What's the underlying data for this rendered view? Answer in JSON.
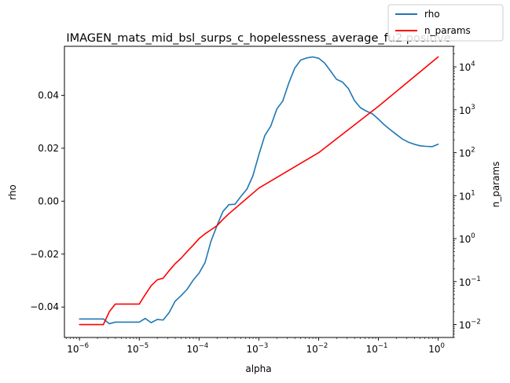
{
  "chart_data": {
    "type": "line",
    "title": "IMAGEN_mats_mid_bsl_surps_c_hopelessness_average_fu2 positive",
    "xlabel": "alpha",
    "ylabel_left": "rho",
    "ylabel_right": "n_params",
    "x_scale": "log",
    "y_right_scale": "log",
    "xlim": [
      5.6e-07,
      1.8
    ],
    "ylim_left": [
      -0.0515,
      0.0585
    ],
    "ylim_right": [
      0.005,
      30000
    ],
    "x_ticks": [
      {
        "base": "10",
        "exp": "−6",
        "value": 1e-06
      },
      {
        "base": "10",
        "exp": "−5",
        "value": 1e-05
      },
      {
        "base": "10",
        "exp": "−4",
        "value": 0.0001
      },
      {
        "base": "10",
        "exp": "−3",
        "value": 0.001
      },
      {
        "base": "10",
        "exp": "−2",
        "value": 0.01
      },
      {
        "base": "10",
        "exp": "−1",
        "value": 0.1
      },
      {
        "base": "10",
        "exp": "0",
        "value": 1
      }
    ],
    "y_left_ticks": [
      {
        "label": "−0.04",
        "value": -0.04
      },
      {
        "label": "−0.02",
        "value": -0.02
      },
      {
        "label": "0.00",
        "value": 0.0
      },
      {
        "label": "0.02",
        "value": 0.02
      },
      {
        "label": "0.04",
        "value": 0.04
      }
    ],
    "y_right_ticks": [
      {
        "base": "10",
        "exp": "−2",
        "value": 0.01
      },
      {
        "base": "10",
        "exp": "−1",
        "value": 0.1
      },
      {
        "base": "10",
        "exp": "0",
        "value": 1
      },
      {
        "base": "10",
        "exp": "1",
        "value": 10
      },
      {
        "base": "10",
        "exp": "2",
        "value": 100
      },
      {
        "base": "10",
        "exp": "3",
        "value": 1000
      },
      {
        "base": "10",
        "exp": "4",
        "value": 10000
      }
    ],
    "legend_position": "top-right",
    "series": [
      {
        "name": "rho",
        "axis": "left",
        "color": "#1f77b4",
        "x": [
          1e-06,
          1.26e-06,
          1.58e-06,
          2e-06,
          2.51e-06,
          3.16e-06,
          3.98e-06,
          5.01e-06,
          6.31e-06,
          7.94e-06,
          1e-05,
          1.26e-05,
          1.58e-05,
          2e-05,
          2.51e-05,
          3.16e-05,
          3.98e-05,
          5.01e-05,
          6.31e-05,
          7.94e-05,
          0.0001,
          0.000126,
          0.000158,
          0.0002,
          0.000251,
          0.000316,
          0.000398,
          0.000501,
          0.000631,
          0.000794,
          0.001,
          0.00126,
          0.00158,
          0.002,
          0.00251,
          0.00316,
          0.00398,
          0.00501,
          0.00631,
          0.00794,
          0.01,
          0.0126,
          0.0158,
          0.02,
          0.0251,
          0.0316,
          0.0398,
          0.0501,
          0.0631,
          0.0794,
          0.1,
          0.126,
          0.158,
          0.2,
          0.251,
          0.316,
          0.398,
          0.501,
          0.631,
          0.794,
          1
        ],
        "values": [
          -0.0445,
          -0.0445,
          -0.0445,
          -0.0445,
          -0.0445,
          -0.0463,
          -0.0457,
          -0.0457,
          -0.0457,
          -0.0457,
          -0.0457,
          -0.0443,
          -0.0459,
          -0.0447,
          -0.0449,
          -0.0421,
          -0.0378,
          -0.0357,
          -0.0333,
          -0.0299,
          -0.0272,
          -0.0232,
          -0.0152,
          -0.0092,
          -0.0039,
          -0.0013,
          -0.0012,
          0.0018,
          0.0045,
          0.0095,
          0.0175,
          0.0248,
          0.0283,
          0.0348,
          0.0378,
          0.0445,
          0.0502,
          0.0533,
          0.0541,
          0.0545,
          0.054,
          0.0522,
          0.0492,
          0.046,
          0.045,
          0.0425,
          0.038,
          0.0353,
          0.034,
          0.033,
          0.031,
          0.0288,
          0.027,
          0.0252,
          0.0235,
          0.0223,
          0.0215,
          0.0209,
          0.0207,
          0.0206,
          0.0215
        ]
      },
      {
        "name": "n_params",
        "axis": "right",
        "color": "#ff0000",
        "x": [
          1e-06,
          1.26e-06,
          1.58e-06,
          2e-06,
          2.51e-06,
          3.16e-06,
          3.98e-06,
          5.01e-06,
          6.31e-06,
          7.94e-06,
          1e-05,
          1.26e-05,
          1.58e-05,
          2e-05,
          2.51e-05,
          3.16e-05,
          3.98e-05,
          5.01e-05,
          6.31e-05,
          7.94e-05,
          0.0001,
          0.000126,
          0.000158,
          0.0002,
          0.000251,
          0.000316,
          0.001,
          0.01,
          0.1,
          1
        ],
        "values": [
          0.01,
          0.01,
          0.01,
          0.01,
          0.01,
          0.02,
          0.03,
          0.03,
          0.03,
          0.03,
          0.03,
          0.05,
          0.08,
          0.11,
          0.12,
          0.18,
          0.26,
          0.35,
          0.5,
          0.7,
          1.0,
          1.3,
          1.6,
          2.0,
          2.8,
          3.8,
          15,
          100,
          1200,
          17000
        ]
      }
    ]
  }
}
